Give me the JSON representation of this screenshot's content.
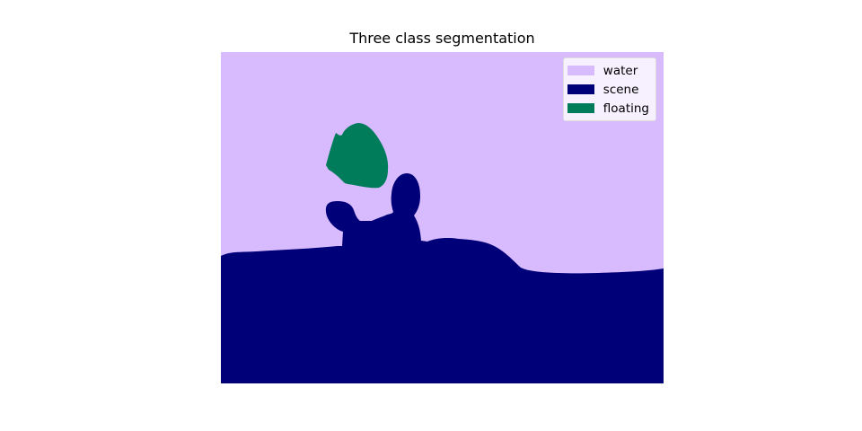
{
  "title": "Three class segmentation",
  "classes": {
    "water": {
      "label": "water",
      "color": "#d8baff"
    },
    "scene": {
      "label": "scene",
      "color": "#000078"
    },
    "floating": {
      "label": "floating",
      "color": "#007c5a"
    }
  }
}
